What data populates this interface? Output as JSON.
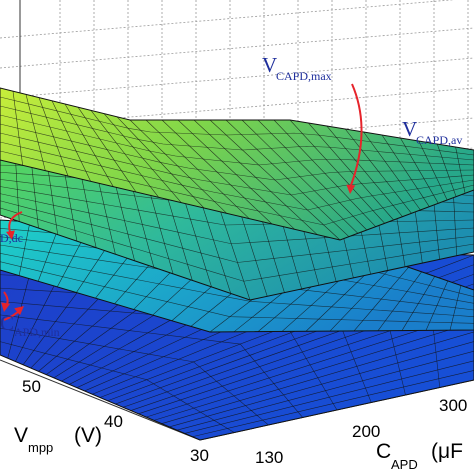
{
  "chart_data": {
    "type": "surface",
    "x_axis": {
      "label_main": "V",
      "label_sub": "mpp",
      "label_unit": "(V)",
      "ticks": [
        30,
        40,
        50
      ]
    },
    "y_axis": {
      "label_main": "C",
      "label_sub": "APD",
      "label_unit": "(μF",
      "ticks": [
        130,
        200,
        300
      ]
    },
    "grid": true,
    "surfaces": [
      {
        "name": "V_CAPD,max",
        "annotation_main": "V",
        "annotation_sub": "CAPD,max",
        "colormap": "green-cyan"
      },
      {
        "name": "V_CAPD,av",
        "annotation_main": "V",
        "annotation_sub": "CAPD,av",
        "colormap": "cyan-teal"
      },
      {
        "name": "V_CAPD,dc",
        "annotation_main": "",
        "annotation_sub": "D,dc",
        "colormap": "teal-blue"
      },
      {
        "name": "V_CAPD,min",
        "annotation_main": "C",
        "annotation_sub": "APD,min",
        "colormap": "blue"
      }
    ],
    "colors": {
      "arrow": "#e6242b",
      "annotation": "#1f2f9c",
      "mesh_line": "#111111",
      "grid_line": "#9a9a9a"
    }
  }
}
